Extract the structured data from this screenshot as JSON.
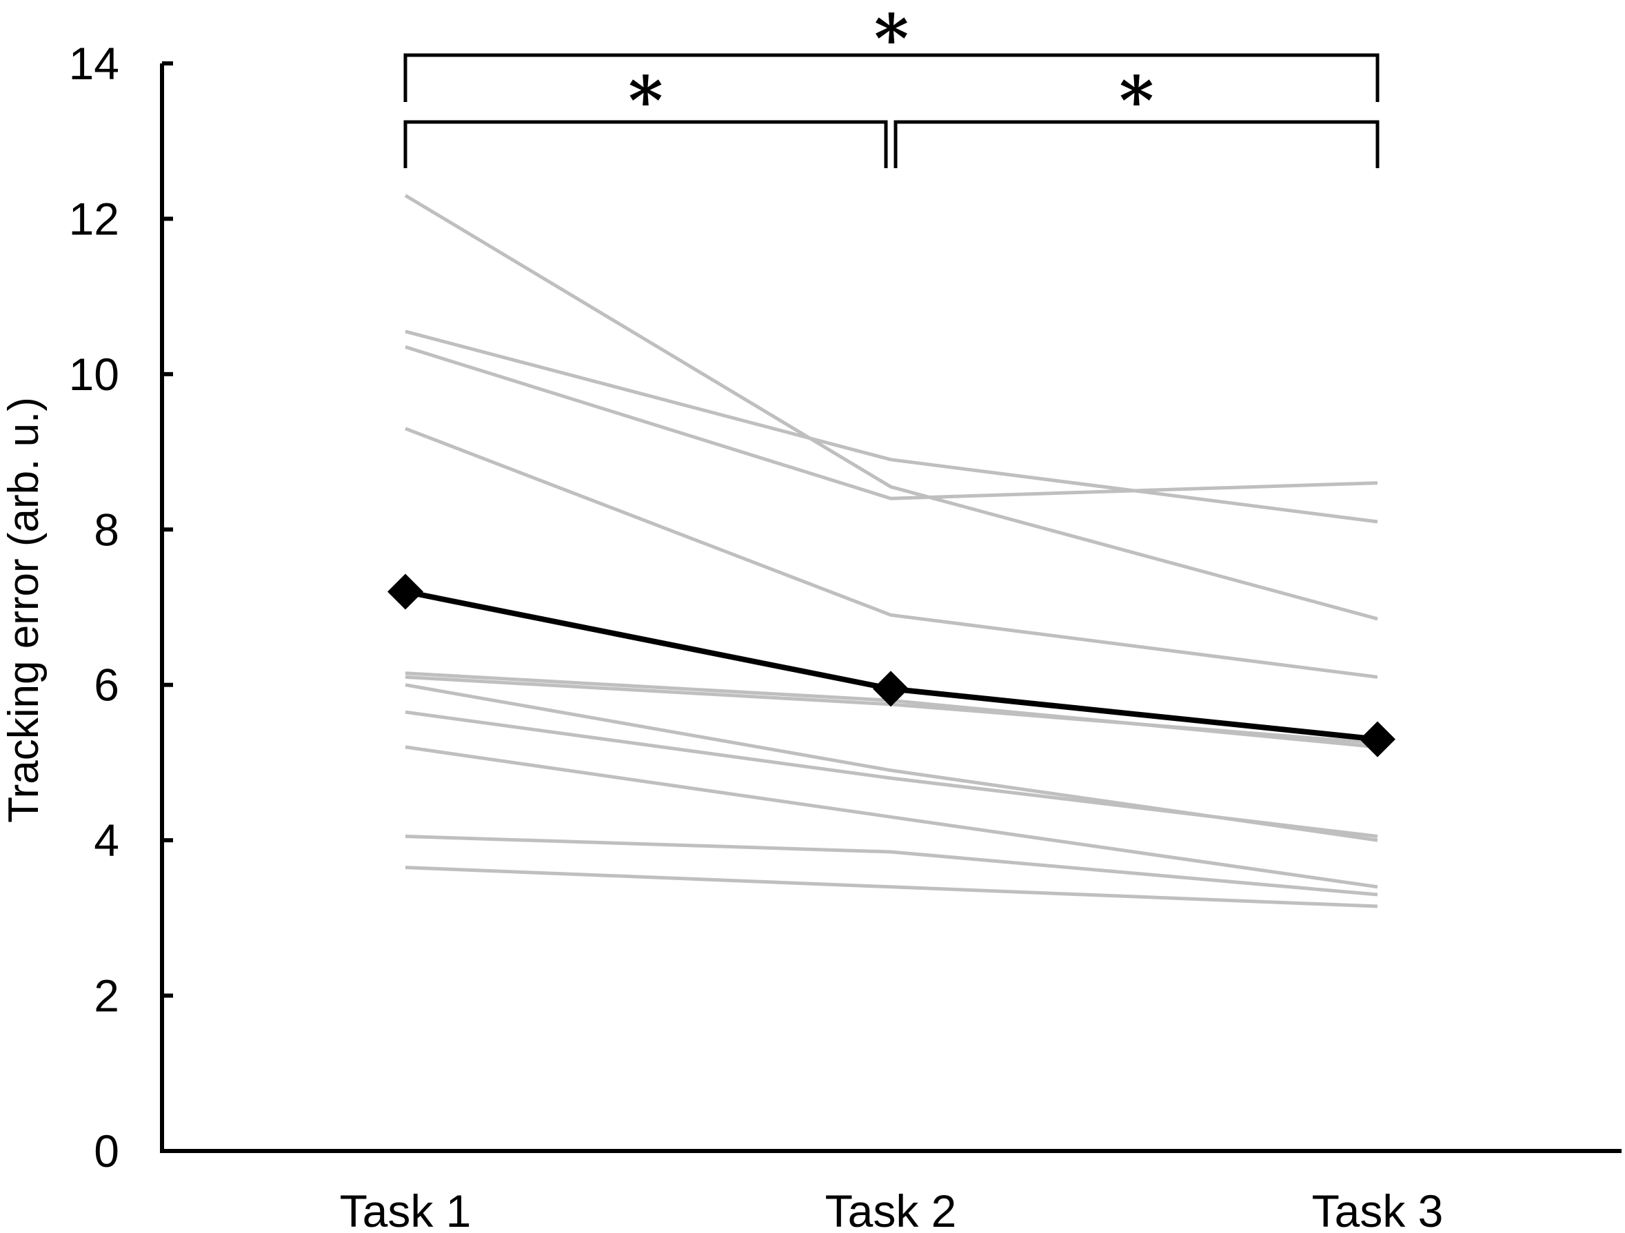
{
  "chart_data": {
    "type": "line",
    "title": "",
    "xlabel": "",
    "ylabel": "Tracking error (arb. u.)",
    "categories": [
      "Task 1",
      "Task 2",
      "Task 3"
    ],
    "ylim": [
      0,
      14
    ],
    "yticks": [
      "0",
      "2",
      "4",
      "6",
      "8",
      "10",
      "12",
      "14"
    ],
    "grid": false,
    "legend": "none",
    "individual_series_color": "#bfbfbf",
    "mean_series_color": "#000000",
    "individual_series": [
      {
        "values": [
          12.3,
          8.55,
          6.85
        ]
      },
      {
        "values": [
          10.55,
          8.9,
          8.1
        ]
      },
      {
        "values": [
          10.35,
          8.4,
          8.6
        ]
      },
      {
        "values": [
          9.3,
          6.9,
          6.1
        ]
      },
      {
        "values": [
          6.15,
          5.8,
          5.2
        ]
      },
      {
        "values": [
          6.1,
          5.75,
          5.25
        ]
      },
      {
        "values": [
          6.0,
          4.9,
          4.0
        ]
      },
      {
        "values": [
          5.65,
          4.8,
          4.05
        ]
      },
      {
        "values": [
          5.2,
          4.3,
          3.4
        ]
      },
      {
        "values": [
          4.05,
          3.85,
          3.3
        ]
      },
      {
        "values": [
          3.65,
          3.4,
          3.15
        ]
      }
    ],
    "mean_series": {
      "marker": "diamond",
      "values": [
        7.2,
        5.95,
        5.3
      ]
    },
    "significance": [
      {
        "pair": [
          "Task 1",
          "Task 3"
        ],
        "label": "*"
      },
      {
        "pair": [
          "Task 1",
          "Task 2"
        ],
        "label": "*"
      },
      {
        "pair": [
          "Task 2",
          "Task 3"
        ],
        "label": "*"
      }
    ]
  }
}
